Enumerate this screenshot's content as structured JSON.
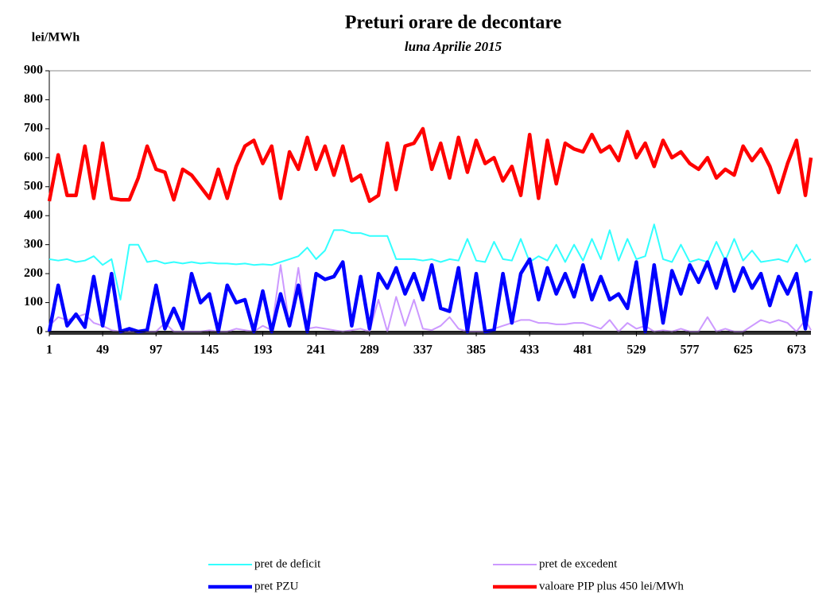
{
  "chart_data": {
    "type": "line",
    "title": "Preturi orare de decontare",
    "subtitle": "luna Aprilie 2015",
    "y_label": "lei/MWh",
    "xlim": [
      1,
      686
    ],
    "xticks": [
      1,
      49,
      97,
      145,
      193,
      241,
      289,
      337,
      385,
      433,
      481,
      529,
      577,
      625,
      673
    ],
    "ylim": [
      0,
      900
    ],
    "yticks": [
      0,
      100,
      200,
      300,
      400,
      500,
      600,
      700,
      800,
      900
    ],
    "x": [
      1,
      9,
      17,
      25,
      33,
      41,
      49,
      57,
      65,
      73,
      81,
      89,
      97,
      105,
      113,
      121,
      129,
      137,
      145,
      153,
      161,
      169,
      177,
      185,
      193,
      201,
      209,
      217,
      225,
      233,
      241,
      249,
      257,
      265,
      273,
      281,
      289,
      297,
      305,
      313,
      321,
      329,
      337,
      345,
      353,
      361,
      369,
      377,
      385,
      393,
      401,
      409,
      417,
      425,
      433,
      441,
      449,
      457,
      465,
      473,
      481,
      489,
      497,
      505,
      513,
      521,
      529,
      537,
      545,
      553,
      561,
      569,
      577,
      585,
      593,
      601,
      609,
      617,
      625,
      633,
      641,
      649,
      657,
      665,
      673,
      681,
      686
    ],
    "series": [
      {
        "name": "pret de deficit",
        "color": "#33ffff",
        "width": 2,
        "values": [
          250,
          245,
          250,
          240,
          245,
          260,
          230,
          250,
          110,
          300,
          300,
          240,
          245,
          235,
          240,
          235,
          240,
          235,
          238,
          235,
          235,
          232,
          235,
          230,
          232,
          230,
          240,
          250,
          260,
          290,
          250,
          280,
          350,
          350,
          340,
          340,
          330,
          330,
          330,
          250,
          250,
          250,
          245,
          250,
          240,
          250,
          245,
          320,
          245,
          240,
          310,
          250,
          245,
          320,
          240,
          260,
          245,
          300,
          240,
          300,
          245,
          320,
          250,
          350,
          245,
          320,
          250,
          260,
          370,
          250,
          240,
          300,
          240,
          250,
          240,
          310,
          245,
          320,
          245,
          280,
          240,
          245,
          250,
          240,
          300,
          240,
          250
        ]
      },
      {
        "name": "pret de excedent",
        "color": "#cc99ff",
        "width": 2,
        "values": [
          20,
          50,
          40,
          50,
          60,
          30,
          20,
          5,
          0,
          0,
          0,
          0,
          0,
          30,
          0,
          0,
          0,
          0,
          5,
          0,
          0,
          10,
          5,
          0,
          20,
          5,
          230,
          20,
          220,
          10,
          15,
          10,
          5,
          0,
          5,
          10,
          0,
          110,
          0,
          120,
          20,
          110,
          10,
          5,
          20,
          50,
          10,
          0,
          0,
          0,
          10,
          20,
          30,
          40,
          40,
          30,
          30,
          25,
          25,
          30,
          30,
          20,
          10,
          40,
          0,
          30,
          10,
          20,
          0,
          5,
          0,
          10,
          0,
          0,
          50,
          0,
          10,
          0,
          0,
          20,
          40,
          30,
          40,
          30,
          0,
          40,
          5
        ]
      },
      {
        "name": "pret PZU",
        "color": "#0000ff",
        "width": 4.5,
        "values": [
          0,
          160,
          20,
          60,
          15,
          190,
          20,
          200,
          0,
          10,
          0,
          5,
          160,
          10,
          80,
          10,
          200,
          100,
          130,
          0,
          160,
          100,
          110,
          0,
          140,
          0,
          130,
          20,
          160,
          0,
          200,
          180,
          190,
          240,
          20,
          190,
          10,
          200,
          150,
          220,
          130,
          200,
          110,
          230,
          80,
          70,
          220,
          0,
          200,
          0,
          5,
          200,
          30,
          200,
          250,
          110,
          220,
          130,
          200,
          120,
          230,
          110,
          190,
          110,
          130,
          80,
          240,
          0,
          230,
          30,
          210,
          130,
          230,
          170,
          240,
          150,
          250,
          140,
          220,
          150,
          200,
          90,
          190,
          130,
          200,
          10,
          140
        ]
      },
      {
        "name": "valoare PIP plus 450 lei/MWh",
        "color": "#ff0000",
        "width": 4.5,
        "values": [
          450,
          610,
          470,
          470,
          640,
          460,
          650,
          460,
          455,
          455,
          530,
          640,
          560,
          550,
          455,
          560,
          540,
          500,
          460,
          560,
          460,
          570,
          640,
          660,
          580,
          640,
          460,
          620,
          560,
          670,
          560,
          640,
          540,
          640,
          520,
          540,
          450,
          470,
          650,
          490,
          640,
          650,
          700,
          560,
          650,
          530,
          670,
          550,
          660,
          580,
          600,
          520,
          570,
          470,
          680,
          460,
          660,
          510,
          650,
          630,
          620,
          680,
          620,
          640,
          590,
          690,
          600,
          650,
          570,
          660,
          600,
          620,
          580,
          560,
          600,
          530,
          560,
          540,
          640,
          590,
          630,
          570,
          480,
          580,
          660,
          470,
          600
        ]
      }
    ]
  }
}
